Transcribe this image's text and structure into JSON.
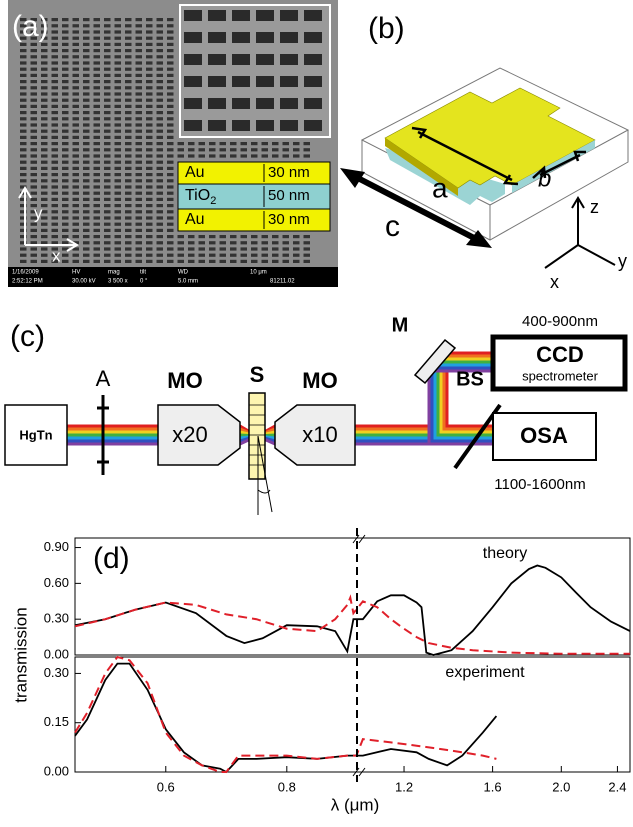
{
  "panel_a": {
    "label": "(a)",
    "layers": [
      {
        "material": "Au",
        "thickness": "30 nm"
      },
      {
        "material": "TiO",
        "subscript": "2",
        "thickness": "50 nm"
      },
      {
        "material": "Au",
        "thickness": "30 nm"
      }
    ],
    "axes": {
      "y": "y",
      "x": "x"
    },
    "info_bar": [
      "1/16/2009",
      "2:52:12 PM",
      "HV",
      "30.00 kV",
      "mag",
      "3 500 x",
      "tilt",
      "0 °",
      "WD",
      "5.0 mm",
      "10 μm",
      "81211.02"
    ]
  },
  "panel_b": {
    "label": "(b)",
    "dimensions": [
      "a",
      "b",
      "c"
    ],
    "axes": [
      "z",
      "x",
      "y"
    ]
  },
  "panel_c": {
    "label": "(c)",
    "source": "HgTn",
    "aperture": "A",
    "objective_1": {
      "name": "MO",
      "mag": "x20"
    },
    "sample": "S",
    "objective_2": {
      "name": "MO",
      "mag": "x10"
    },
    "mirror": "M",
    "beam_splitter": "BS",
    "ccd": {
      "name": "CCD",
      "sub": "spectrometer",
      "range": "400-900nm"
    },
    "osa": {
      "name": "OSA",
      "range": "1100-1600nm"
    }
  },
  "panel_d": {
    "label": "(d)",
    "xlabel": "λ (μm)",
    "ylabel": "transmission"
  },
  "chart_data": [
    {
      "type": "line",
      "annotation": "theory",
      "xlim": [
        [
          0.45,
          0.916
        ],
        [
          1.03,
          2.5
        ]
      ],
      "xscale": [
        "linear",
        "log"
      ],
      "ylim": [
        0,
        0.98
      ],
      "yticks": [
        {
          "value": 0,
          "label": "0.00"
        },
        {
          "value": 0.3,
          "label": "0.30"
        },
        {
          "value": 0.6,
          "label": "0.60"
        },
        {
          "value": 0.9,
          "label": "0.90"
        }
      ],
      "series": [
        {
          "color": "#000000",
          "style": "solid",
          "x": [
            0.45,
            0.5,
            0.55,
            0.6,
            0.65,
            0.7,
            0.73,
            0.76,
            0.8,
            0.85,
            0.88,
            0.9,
            0.91,
            1.05,
            1.1,
            1.15,
            1.2,
            1.25,
            1.27,
            1.29,
            1.32,
            1.4,
            1.5,
            1.6,
            1.7,
            1.8,
            1.85,
            1.9,
            2.0,
            2.1,
            2.2,
            2.35,
            2.5
          ],
          "values": [
            0.25,
            0.3,
            0.38,
            0.44,
            0.35,
            0.16,
            0.1,
            0.14,
            0.25,
            0.24,
            0.2,
            0.03,
            0.3,
            0.3,
            0.45,
            0.5,
            0.5,
            0.44,
            0.4,
            0.02,
            0.0,
            0.04,
            0.2,
            0.4,
            0.6,
            0.72,
            0.75,
            0.73,
            0.65,
            0.52,
            0.4,
            0.28,
            0.2
          ]
        },
        {
          "color": "#e0202a",
          "style": "dashed",
          "x": [
            0.45,
            0.5,
            0.55,
            0.6,
            0.65,
            0.7,
            0.75,
            0.8,
            0.85,
            0.88,
            0.9,
            0.905,
            0.91,
            1.05,
            1.1,
            1.15,
            1.2,
            1.25,
            1.3,
            1.4,
            1.5,
            1.7,
            2.0,
            2.5
          ],
          "values": [
            0.24,
            0.3,
            0.38,
            0.44,
            0.42,
            0.34,
            0.3,
            0.22,
            0.2,
            0.3,
            0.42,
            0.48,
            0.35,
            0.45,
            0.4,
            0.3,
            0.22,
            0.15,
            0.1,
            0.06,
            0.04,
            0.02,
            0.01,
            0.01
          ]
        }
      ]
    },
    {
      "type": "line",
      "annotation": "experiment",
      "xlim": [
        [
          0.45,
          0.916
        ],
        [
          1.03,
          2.5
        ]
      ],
      "xscale": [
        "linear",
        "log"
      ],
      "ylim": [
        0,
        0.35
      ],
      "xticks": [
        0.6,
        0.8,
        1.2,
        1.6,
        {
          "value": 2,
          "label": "2.0"
        },
        2.4
      ],
      "yticks": [
        {
          "value": 0,
          "label": "0.00"
        },
        {
          "value": 0.15,
          "label": "0.15"
        },
        {
          "value": 0.3,
          "label": "0.30"
        }
      ],
      "series": [
        {
          "color": "#000000",
          "style": "solid",
          "x": [
            0.45,
            0.47,
            0.5,
            0.52,
            0.54,
            0.57,
            0.6,
            0.63,
            0.66,
            0.69,
            0.7,
            0.72,
            0.75,
            0.8,
            0.85,
            0.9,
            0.915,
            1.05,
            1.15,
            1.25,
            1.3,
            1.38,
            1.45,
            1.55,
            1.62
          ],
          "values": [
            0.11,
            0.16,
            0.28,
            0.33,
            0.33,
            0.25,
            0.13,
            0.06,
            0.02,
            0.01,
            0.0,
            0.04,
            0.04,
            0.045,
            0.04,
            0.05,
            0.05,
            0.05,
            0.07,
            0.06,
            0.04,
            0.02,
            0.05,
            0.12,
            0.17
          ]
        },
        {
          "color": "#e0202a",
          "style": "dashed",
          "x": [
            0.45,
            0.47,
            0.5,
            0.52,
            0.54,
            0.57,
            0.6,
            0.63,
            0.66,
            0.69,
            0.7,
            0.72,
            0.75,
            0.8,
            0.85,
            0.9,
            0.915,
            1.05,
            1.15,
            1.25,
            1.35,
            1.45,
            1.55,
            1.62
          ],
          "values": [
            0.12,
            0.18,
            0.3,
            0.35,
            0.34,
            0.27,
            0.12,
            0.05,
            0.02,
            0.0,
            0.0,
            0.05,
            0.05,
            0.05,
            0.04,
            0.05,
            0.05,
            0.1,
            0.09,
            0.08,
            0.07,
            0.06,
            0.05,
            0.04
          ]
        }
      ]
    }
  ]
}
